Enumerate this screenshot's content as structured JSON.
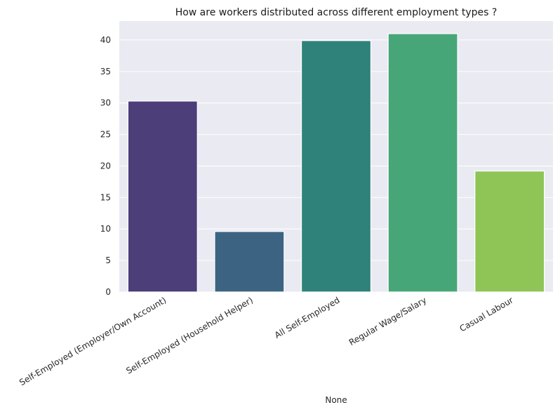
{
  "chart_data": {
    "type": "bar",
    "title": "How are workers distributed across different employment types ?",
    "xlabel": "None",
    "ylabel": "",
    "categories": [
      "Self-Employed (Employer/Own Account)",
      "Self-Employed (Household Helper)",
      "All Self-Employed",
      "Regular Wage/Salary",
      "Casual Labour"
    ],
    "values": [
      30.3,
      9.6,
      39.9,
      41.0,
      19.2
    ],
    "colors": [
      "#4b3e79",
      "#3c6482",
      "#2e8279",
      "#47a677",
      "#8ec556"
    ],
    "yticks": [
      0,
      5,
      10,
      15,
      20,
      25,
      30,
      35,
      40
    ],
    "ylim": [
      0,
      43
    ],
    "grid": true,
    "plot_background": "#eaeaf2"
  }
}
